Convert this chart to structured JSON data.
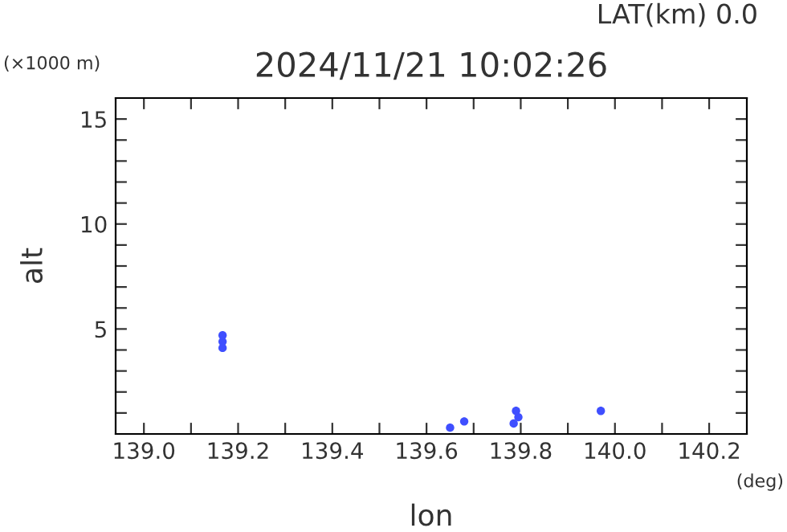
{
  "chart_data": {
    "type": "scatter",
    "title": "2024/11/21 10:02:26",
    "xlabel": "lon",
    "ylabel": "alt",
    "annotations": [
      "LAT(km) 0.0",
      "(×1000 m)",
      "(deg)"
    ],
    "series": [
      {
        "color": "#3f4fff",
        "x": [
          139.167,
          139.167,
          139.167,
          139.65,
          139.68,
          139.785,
          139.795,
          139.79,
          139.97
        ],
        "values": [
          4.1,
          4.4,
          4.7,
          0.3,
          0.6,
          0.5,
          0.8,
          1.1,
          1.1
        ]
      }
    ],
    "marker": "circle",
    "grid": false,
    "legend": false,
    "xlim": [
      138.94,
      140.28
    ],
    "ylim": [
      0,
      16
    ],
    "xticks": [
      {
        "value": 139.0,
        "label": "139.0"
      },
      {
        "value": 139.1,
        "label": null
      },
      {
        "value": 139.2,
        "label": "139.2"
      },
      {
        "value": 139.3,
        "label": null
      },
      {
        "value": 139.4,
        "label": "139.4"
      },
      {
        "value": 139.5,
        "label": null
      },
      {
        "value": 139.6,
        "label": "139.6"
      },
      {
        "value": 139.7,
        "label": null
      },
      {
        "value": 139.8,
        "label": "139.8"
      },
      {
        "value": 139.9,
        "label": null
      },
      {
        "value": 140.0,
        "label": "140.0"
      },
      {
        "value": 140.1,
        "label": null
      },
      {
        "value": 140.2,
        "label": "140.2"
      }
    ],
    "yticks": [
      {
        "value": 1,
        "label": null
      },
      {
        "value": 2,
        "label": null
      },
      {
        "value": 3,
        "label": null
      },
      {
        "value": 4,
        "label": null
      },
      5,
      {
        "value": 6,
        "label": null
      },
      {
        "value": 7,
        "label": null
      },
      {
        "value": 8,
        "label": null
      },
      {
        "value": 9,
        "label": null
      },
      10,
      {
        "value": 11,
        "label": null
      },
      {
        "value": 12,
        "label": null
      },
      {
        "value": 13,
        "label": null
      },
      {
        "value": 14,
        "label": null
      },
      15
    ]
  }
}
